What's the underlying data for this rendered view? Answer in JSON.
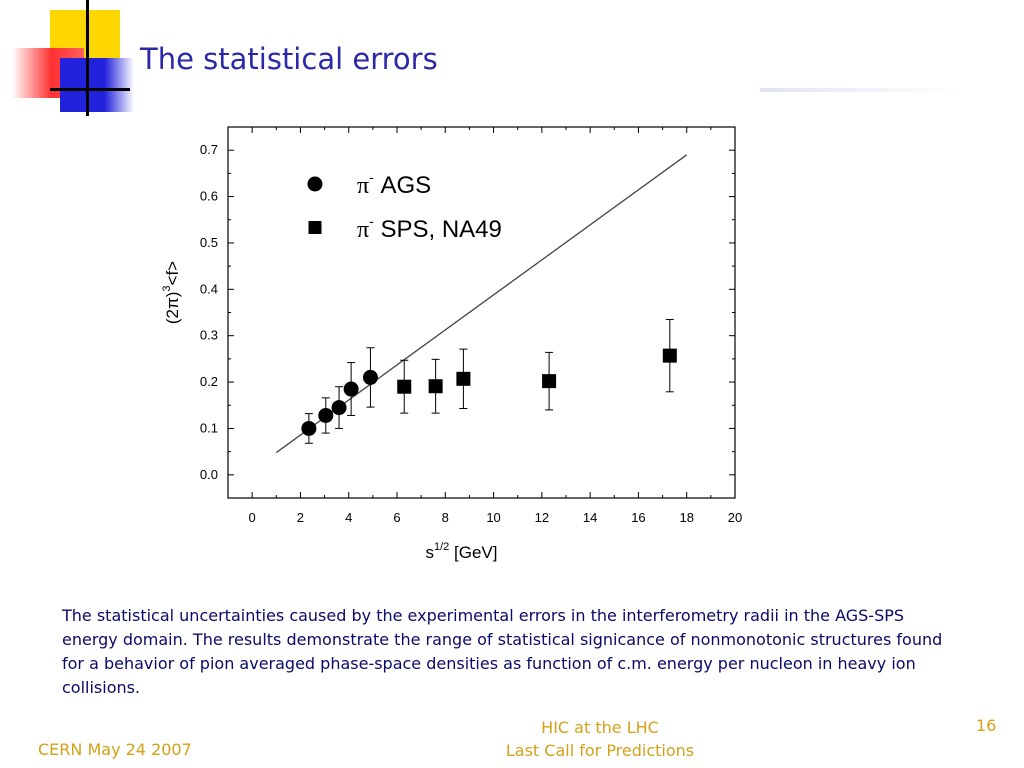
{
  "slide": {
    "title": "The statistical errors",
    "caption": " The statistical uncertainties caused by the experimental errors in the interferometry radii in the AGS-SPS energy domain. The results demonstrate the range of statistical signicance of nonmonotonic structures found for a behavior of pion averaged phase-space densities as function of c.m. energy per nucleon in heavy ion collisions.",
    "footer_left": "CERN May 24 2007",
    "footer_center_line1": "HIC at the LHC",
    "footer_center_line2": "Last Call for Predictions",
    "number": "16"
  },
  "colors": {
    "title": "#2a2aa8",
    "caption": "#0a0a6a",
    "footer": "#d4a017",
    "deco_yellow": "#ffd700",
    "deco_red": "#ff3030",
    "deco_blue": "#2222dd"
  },
  "chart_data": {
    "type": "scatter",
    "xlim": [
      -1,
      20
    ],
    "ylim": [
      -0.05,
      0.75
    ],
    "xticks": [
      0,
      2,
      4,
      6,
      8,
      10,
      12,
      14,
      16,
      18,
      20
    ],
    "yticks": [
      0.0,
      0.1,
      0.2,
      0.3,
      0.4,
      0.5,
      0.6,
      0.7
    ],
    "xtick_labels": [
      "0",
      "2",
      "4",
      "6",
      "8",
      "10",
      "12",
      "14",
      "16",
      "18",
      "20"
    ],
    "ytick_labels": [
      "0.0",
      "0.1",
      "0.2",
      "0.3",
      "0.4",
      "0.5",
      "0.6",
      "0.7"
    ],
    "xlabel": "s",
    "xlabel_sup": "1/2",
    "xlabel_unit": " [GeV]",
    "ylabel": "(2π)",
    "ylabel_sup": "3",
    "ylabel_tail": "<f>",
    "grid": false,
    "legend_position": "top-left",
    "series": [
      {
        "name": "AGS",
        "legend_prefix": "π",
        "legend_sup": "-",
        "marker": "circle",
        "x": [
          2.35,
          3.05,
          3.6,
          4.1,
          4.9
        ],
        "y": [
          0.1,
          0.128,
          0.145,
          0.185,
          0.21
        ],
        "err": [
          0.032,
          0.038,
          0.045,
          0.057,
          0.064
        ]
      },
      {
        "name": "SPS, NA49",
        "legend_prefix": "π",
        "legend_sup": "-",
        "marker": "square",
        "x": [
          6.3,
          7.6,
          8.75,
          12.3,
          17.3
        ],
        "y": [
          0.19,
          0.191,
          0.207,
          0.202,
          0.257
        ],
        "err": [
          0.057,
          0.058,
          0.064,
          0.062,
          0.078
        ]
      }
    ],
    "fit_line": {
      "x": [
        1.0,
        18.0
      ],
      "y": [
        0.048,
        0.69
      ]
    }
  }
}
